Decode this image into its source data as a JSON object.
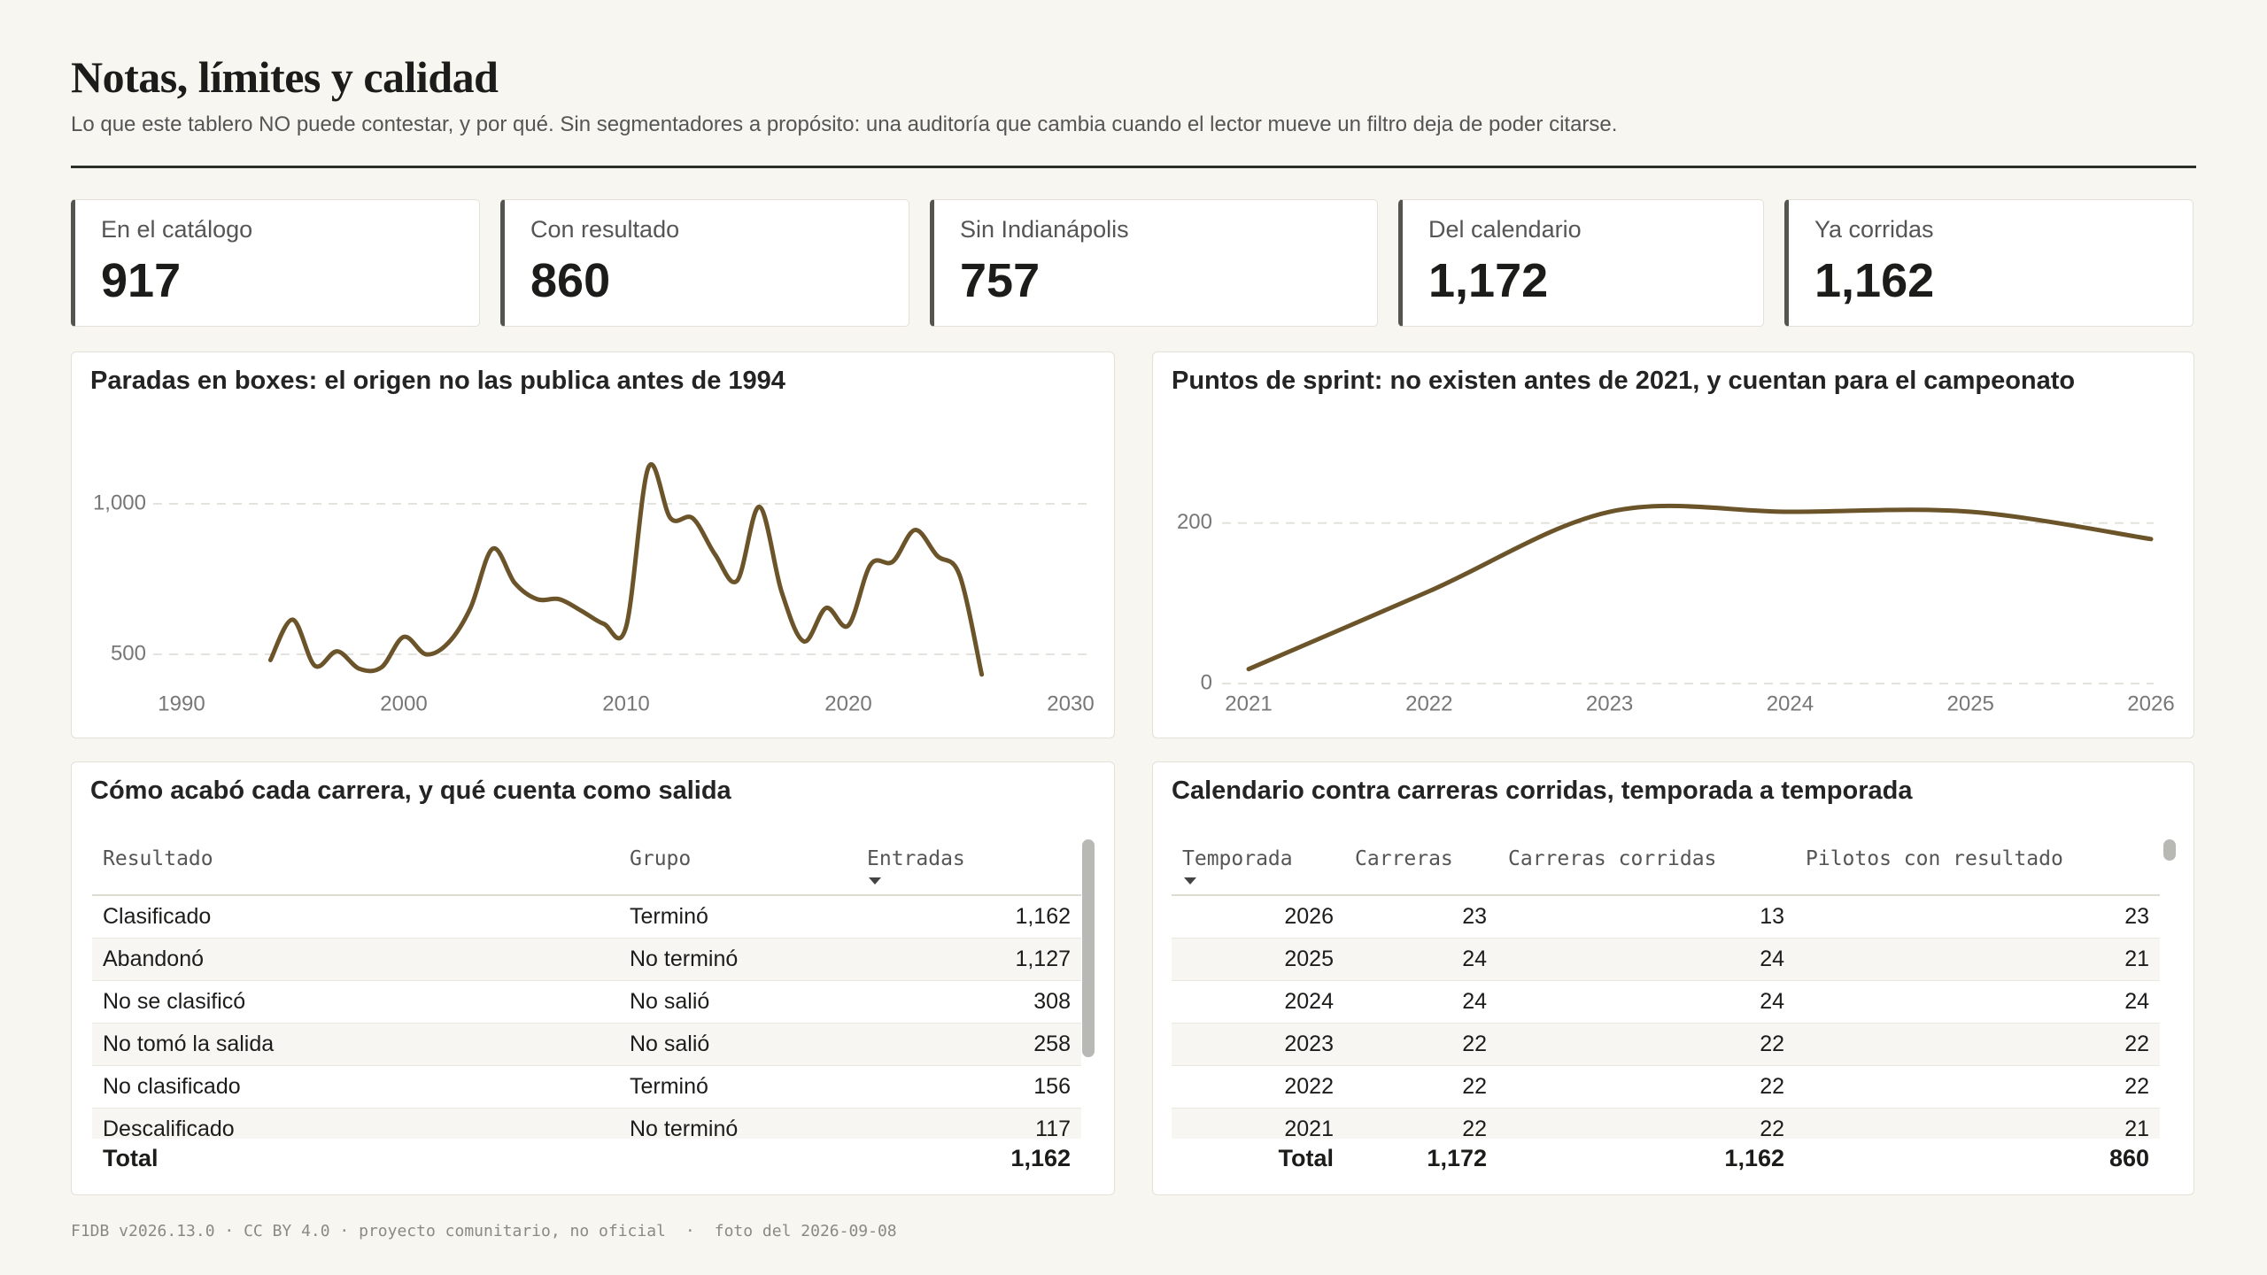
{
  "header": {
    "title": "Notas, límites y calidad",
    "subtitle": "Lo que este tablero NO puede contestar, y por qué. Sin segmentadores a propósito: una auditoría que cambia cuando el lector mueve un filtro deja de poder citarse."
  },
  "kpis": [
    {
      "label": "En el catálogo",
      "value": "917"
    },
    {
      "label": "Con resultado",
      "value": "860"
    },
    {
      "label": "Sin Indianápolis",
      "value": "757"
    },
    {
      "label": "Del calendario",
      "value": "1,172"
    },
    {
      "label": "Ya corridas",
      "value": "1,162"
    }
  ],
  "chart_data": [
    {
      "type": "line",
      "title": "Paradas en boxes: el origen no las publica antes de 1994",
      "x": [
        1994,
        1995,
        1996,
        1997,
        1998,
        1999,
        2000,
        2001,
        2002,
        2003,
        2004,
        2005,
        2006,
        2007,
        2008,
        2009,
        2010,
        2011,
        2012,
        2013,
        2014,
        2015,
        2016,
        2017,
        2018,
        2019,
        2020,
        2021,
        2022,
        2023,
        2024,
        2025,
        2026
      ],
      "values": [
        481,
        615,
        462,
        510,
        452,
        457,
        558,
        500,
        538,
        654,
        851,
        736,
        683,
        683,
        644,
        601,
        591,
        1120,
        952,
        952,
        832,
        745,
        990,
        707,
        543,
        654,
        596,
        798,
        808,
        913,
        827,
        764,
        433
      ],
      "color": "#6b5429",
      "xlim": [
        1990,
        2030
      ],
      "xticks": [
        1990,
        2000,
        2010,
        2020,
        2030
      ],
      "ylim": [
        400,
        1250
      ],
      "yticks": [
        500,
        {
          "value": 1000,
          "label": "1,000"
        }
      ],
      "grid": true
    },
    {
      "type": "line",
      "title": "Puntos de sprint: no existen antes de 2021, y cuentan para el campeonato",
      "x": [
        2021,
        2022,
        2023,
        2024,
        2025,
        2026
      ],
      "values": [
        18,
        115,
        214,
        214,
        214,
        180
      ],
      "color": "#6b5429",
      "xlim": [
        2021,
        2026
      ],
      "xticks": [
        2021,
        2022,
        2023,
        2024,
        2025,
        2026
      ],
      "ylim": [
        0,
        310
      ],
      "yticks": [
        0,
        200
      ],
      "grid": true
    }
  ],
  "tables": [
    {
      "title": "Cómo acabó cada carrera, y qué cuenta como salida",
      "columns": [
        "Resultado",
        "Grupo",
        "Entradas"
      ],
      "rows": [
        [
          "Clasificado",
          "Terminó",
          "1,162"
        ],
        [
          "Abandonó",
          "No terminó",
          "1,127"
        ],
        [
          "No se clasificó",
          "No salió",
          "308"
        ],
        [
          "No tomó la salida",
          "No salió",
          "258"
        ],
        [
          "No clasificado",
          "Terminó",
          "156"
        ],
        [
          "Descalificado",
          "No terminó",
          "117"
        ]
      ],
      "total": {
        "label": "Total",
        "values": [
          "1,162"
        ]
      }
    },
    {
      "title": "Calendario contra carreras corridas, temporada a temporada",
      "columns": [
        "Temporada",
        "Carreras",
        "Carreras corridas",
        "Pilotos con resultado"
      ],
      "rows": [
        [
          "2026",
          "23",
          "13",
          "23"
        ],
        [
          "2025",
          "24",
          "24",
          "21"
        ],
        [
          "2024",
          "24",
          "24",
          "24"
        ],
        [
          "2023",
          "22",
          "22",
          "22"
        ],
        [
          "2022",
          "22",
          "22",
          "22"
        ],
        [
          "2021",
          "22",
          "22",
          "21"
        ]
      ],
      "total": {
        "label": "Total",
        "values": [
          "1,172",
          "1,162",
          "860"
        ]
      }
    }
  ],
  "footer": [
    "F1DB v2026.13.0 · CC BY 4.0 · proyecto comunitario, no oficial",
    "·",
    "foto del 2026-09-08"
  ]
}
